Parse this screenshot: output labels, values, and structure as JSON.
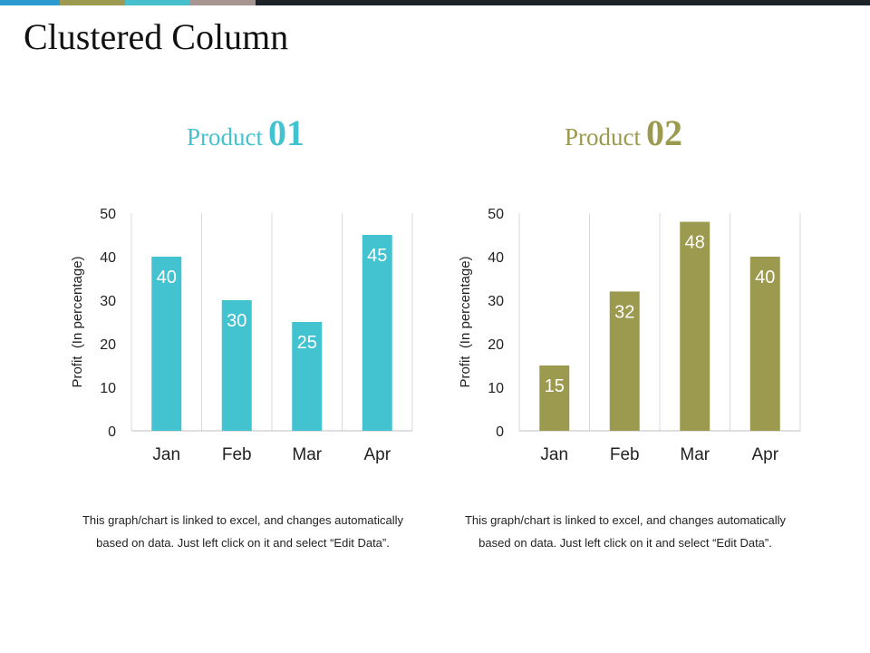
{
  "slide": {
    "title": "Clustered Column"
  },
  "top_bar": {
    "colors": [
      "#2b9ad1",
      "#9c9a50",
      "#47c0cd",
      "#a69590",
      "#1e2329"
    ]
  },
  "panels": [
    {
      "title_word": "Product",
      "title_number": "01",
      "color": "#43c2cf",
      "note": "This graph/chart is linked to excel, and changes automatically based on data. Just left click on it and select “Edit Data”."
    },
    {
      "title_word": "Product",
      "title_number": "02",
      "color": "#9c9a4f",
      "note": "This graph/chart is linked to excel, and changes automatically based on data. Just left click on it and select “Edit Data”."
    }
  ],
  "chart_data": [
    {
      "type": "bar",
      "title": "Product 01",
      "categories": [
        "Jan",
        "Feb",
        "Mar",
        "Apr"
      ],
      "values": [
        40,
        30,
        25,
        45
      ],
      "ylabel": "Profit  (In percentage)",
      "xlabel": "",
      "ylim": [
        0,
        50
      ],
      "yticks": [
        0,
        10,
        20,
        30,
        40,
        50
      ],
      "grid": "vertical",
      "bar_color": "#43c2cf"
    },
    {
      "type": "bar",
      "title": "Product 02",
      "categories": [
        "Jan",
        "Feb",
        "Mar",
        "Apr"
      ],
      "values": [
        15,
        32,
        48,
        40
      ],
      "ylabel": "Profit  (In percentage)",
      "xlabel": "",
      "ylim": [
        0,
        50
      ],
      "yticks": [
        0,
        10,
        20,
        30,
        40,
        50
      ],
      "grid": "vertical",
      "bar_color": "#9c9a4f"
    }
  ]
}
